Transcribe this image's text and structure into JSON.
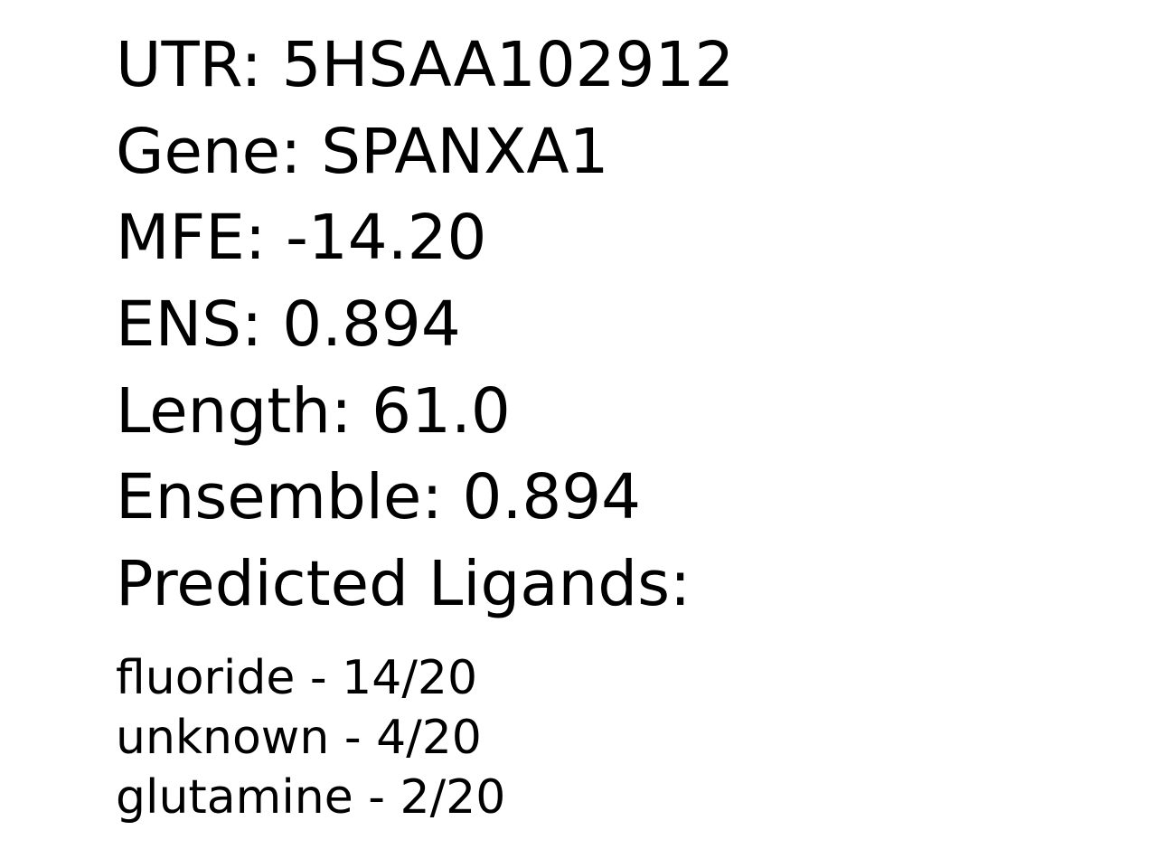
{
  "fields": {
    "utr": "UTR: 5HSAA102912",
    "gene": "Gene: SPANXA1",
    "mfe": "MFE: -14.20",
    "ens": "ENS: 0.894",
    "length": "Length: 61.0",
    "ensemble": "Ensemble: 0.894",
    "ligands_heading": "Predicted Ligands:"
  },
  "ligands": [
    "fluoride - 14/20",
    "unknown - 4/20",
    "glutamine - 2/20"
  ]
}
